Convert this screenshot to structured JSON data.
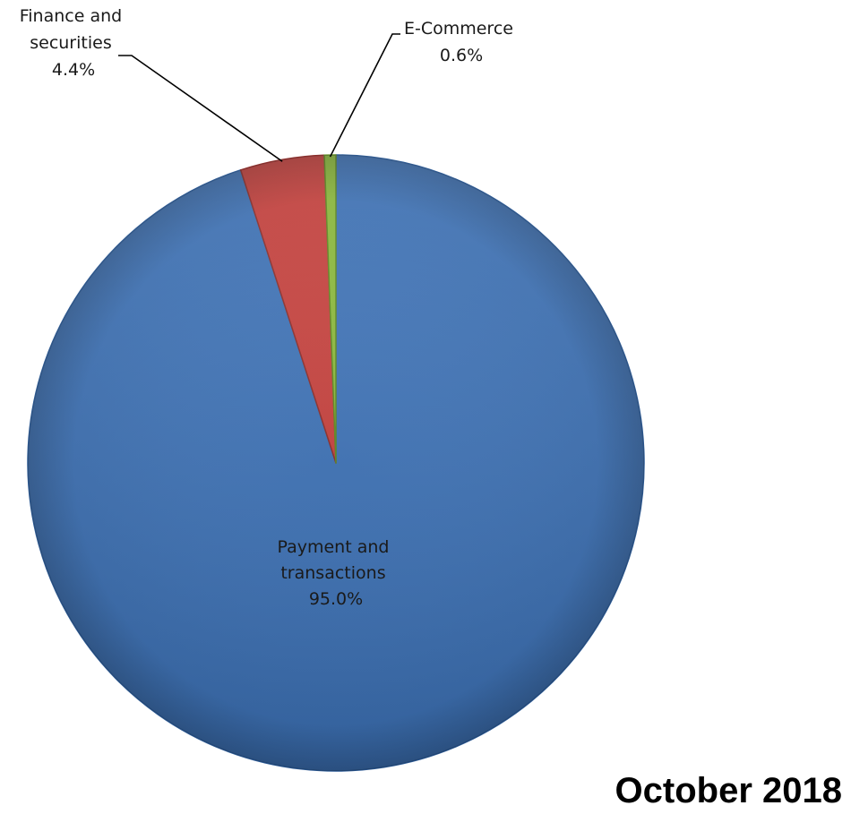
{
  "chart_data": {
    "type": "pie",
    "period_label": "October 2018",
    "slices": [
      {
        "name_lines": [
          "Payment and",
          "transactions"
        ],
        "value": 95.0,
        "value_label": "95.0%",
        "color": "#3d73b9",
        "edge_color": "#2b5a96"
      },
      {
        "name_lines": [
          "Finance and",
          "securities"
        ],
        "value": 4.4,
        "value_label": "4.4%",
        "color": "#c9403c",
        "edge_color": "#8e2a27"
      },
      {
        "name_lines": [
          "E-Commerce"
        ],
        "value": 0.6,
        "value_label": "0.6%",
        "color": "#8cbc3a",
        "edge_color": "#5e8a1e"
      }
    ],
    "start_angle_deg": 0,
    "direction": "clockwise",
    "legend": "none"
  }
}
